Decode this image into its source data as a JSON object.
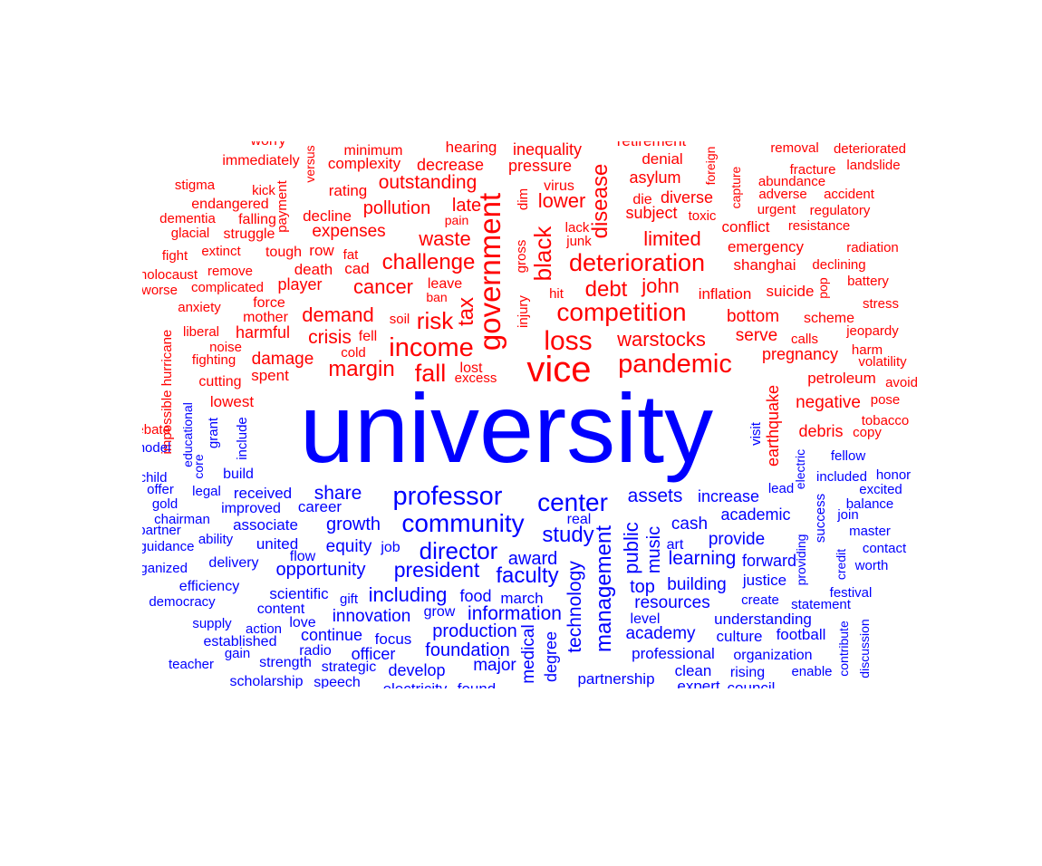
{
  "chart_data": {
    "type": "wordcloud",
    "colors": {
      "negative": "#ff0000",
      "positive": "#0000ff"
    },
    "series": [
      {
        "color_key": "negative",
        "words": [
          {
            "text": "worry"
          },
          {
            "text": "minimum"
          },
          {
            "text": "hearing"
          },
          {
            "text": "inequality"
          },
          {
            "text": "retirement"
          },
          {
            "text": "removal"
          },
          {
            "text": "deteriorated"
          },
          {
            "text": "immediately"
          },
          {
            "text": "versus"
          },
          {
            "text": "complexity"
          },
          {
            "text": "decrease"
          },
          {
            "text": "pressure"
          },
          {
            "text": "foreign"
          },
          {
            "text": "denial"
          },
          {
            "text": "fracture"
          },
          {
            "text": "landslide"
          },
          {
            "text": "stigma"
          },
          {
            "text": "kick"
          },
          {
            "text": "rating"
          },
          {
            "text": "outstanding"
          },
          {
            "text": "virus"
          },
          {
            "text": "asylum"
          },
          {
            "text": "capture"
          },
          {
            "text": "abundance"
          },
          {
            "text": "endangered"
          },
          {
            "text": "payment"
          },
          {
            "text": "late"
          },
          {
            "text": "dim"
          },
          {
            "text": "lower"
          },
          {
            "text": "disease"
          },
          {
            "text": "die"
          },
          {
            "text": "diverse"
          },
          {
            "text": "adverse"
          },
          {
            "text": "accident"
          },
          {
            "text": "dementia"
          },
          {
            "text": "falling"
          },
          {
            "text": "decline"
          },
          {
            "text": "pollution"
          },
          {
            "text": "subject"
          },
          {
            "text": "toxic"
          },
          {
            "text": "urgent"
          },
          {
            "text": "regulatory"
          },
          {
            "text": "glacial"
          },
          {
            "text": "struggle"
          },
          {
            "text": "expenses"
          },
          {
            "text": "pain"
          },
          {
            "text": "government"
          },
          {
            "text": "lack"
          },
          {
            "text": "conflict"
          },
          {
            "text": "resistance"
          },
          {
            "text": "fight"
          },
          {
            "text": "extinct"
          },
          {
            "text": "tough"
          },
          {
            "text": "row"
          },
          {
            "text": "waste"
          },
          {
            "text": "junk"
          },
          {
            "text": "limited"
          },
          {
            "text": "emergency"
          },
          {
            "text": "radiation"
          },
          {
            "text": "holocaust"
          },
          {
            "text": "remove"
          },
          {
            "text": "fat"
          },
          {
            "text": "challenge"
          },
          {
            "text": "gross"
          },
          {
            "text": "black"
          },
          {
            "text": "deterioration"
          },
          {
            "text": "shanghai"
          },
          {
            "text": "declining"
          },
          {
            "text": "worse"
          },
          {
            "text": "complicated"
          },
          {
            "text": "death"
          },
          {
            "text": "cad"
          },
          {
            "text": "battery"
          },
          {
            "text": "anxiety"
          },
          {
            "text": "player"
          },
          {
            "text": "cancer"
          },
          {
            "text": "leave"
          },
          {
            "text": "debt"
          },
          {
            "text": "john"
          },
          {
            "text": "inflation"
          },
          {
            "text": "suicide"
          },
          {
            "text": "pop"
          },
          {
            "text": "stress"
          },
          {
            "text": "hurricane"
          },
          {
            "text": "force"
          },
          {
            "text": "ban"
          },
          {
            "text": "injury"
          },
          {
            "text": "hit"
          },
          {
            "text": "tax"
          },
          {
            "text": "liberal"
          },
          {
            "text": "mother"
          },
          {
            "text": "demand"
          },
          {
            "text": "soil"
          },
          {
            "text": "risk"
          },
          {
            "text": "competition"
          },
          {
            "text": "bottom"
          },
          {
            "text": "scheme"
          },
          {
            "text": "jeopardy"
          },
          {
            "text": "noise"
          },
          {
            "text": "harmful"
          },
          {
            "text": "crisis"
          },
          {
            "text": "fell"
          },
          {
            "text": "loss"
          },
          {
            "text": "warstocks"
          },
          {
            "text": "serve"
          },
          {
            "text": "calls"
          },
          {
            "text": "harm"
          },
          {
            "text": "fighting"
          },
          {
            "text": "damage"
          },
          {
            "text": "cold"
          },
          {
            "text": "income"
          },
          {
            "text": "pregnancy"
          },
          {
            "text": "volatility"
          },
          {
            "text": "impossible"
          },
          {
            "text": "cutting"
          },
          {
            "text": "spent"
          },
          {
            "text": "margin"
          },
          {
            "text": "fall"
          },
          {
            "text": "lost"
          },
          {
            "text": "excess"
          },
          {
            "text": "vice"
          },
          {
            "text": "pandemic"
          },
          {
            "text": "petroleum"
          },
          {
            "text": "avoid"
          },
          {
            "text": "lowest"
          },
          {
            "text": "earthquake"
          },
          {
            "text": "negative"
          },
          {
            "text": "pose"
          },
          {
            "text": "debate"
          },
          {
            "text": "tobacco"
          },
          {
            "text": "debris"
          },
          {
            "text": "copy"
          }
        ]
      },
      {
        "color_key": "positive",
        "words": [
          {
            "text": "university"
          },
          {
            "text": "model"
          },
          {
            "text": "educational"
          },
          {
            "text": "core"
          },
          {
            "text": "grant"
          },
          {
            "text": "include"
          },
          {
            "text": "visit"
          },
          {
            "text": "fellow"
          },
          {
            "text": "child"
          },
          {
            "text": "build"
          },
          {
            "text": "electric"
          },
          {
            "text": "included"
          },
          {
            "text": "honor"
          },
          {
            "text": "offer"
          },
          {
            "text": "legal"
          },
          {
            "text": "received"
          },
          {
            "text": "share"
          },
          {
            "text": "professor"
          },
          {
            "text": "center"
          },
          {
            "text": "assets"
          },
          {
            "text": "increase"
          },
          {
            "text": "lead"
          },
          {
            "text": "excited"
          },
          {
            "text": "gold"
          },
          {
            "text": "improved"
          },
          {
            "text": "career"
          },
          {
            "text": "success"
          },
          {
            "text": "balance"
          },
          {
            "text": "chairman"
          },
          {
            "text": "real"
          },
          {
            "text": "academic"
          },
          {
            "text": "join"
          },
          {
            "text": "partner"
          },
          {
            "text": "associate"
          },
          {
            "text": "growth"
          },
          {
            "text": "community"
          },
          {
            "text": "cash"
          },
          {
            "text": "master"
          },
          {
            "text": "guidance"
          },
          {
            "text": "ability"
          },
          {
            "text": "united"
          },
          {
            "text": "study"
          },
          {
            "text": "public"
          },
          {
            "text": "provide"
          },
          {
            "text": "providing"
          },
          {
            "text": "contact"
          },
          {
            "text": "equity"
          },
          {
            "text": "job"
          },
          {
            "text": "director"
          },
          {
            "text": "music"
          },
          {
            "text": "art"
          },
          {
            "text": "credit"
          },
          {
            "text": "organized"
          },
          {
            "text": "delivery"
          },
          {
            "text": "flow"
          },
          {
            "text": "award"
          },
          {
            "text": "learning"
          },
          {
            "text": "forward"
          },
          {
            "text": "worth"
          },
          {
            "text": "opportunity"
          },
          {
            "text": "president"
          },
          {
            "text": "faculty"
          },
          {
            "text": "justice"
          },
          {
            "text": "efficiency"
          },
          {
            "text": "technology"
          },
          {
            "text": "management"
          },
          {
            "text": "top"
          },
          {
            "text": "building"
          },
          {
            "text": "festival"
          },
          {
            "text": "democracy"
          },
          {
            "text": "scientific"
          },
          {
            "text": "gift"
          },
          {
            "text": "including"
          },
          {
            "text": "food"
          },
          {
            "text": "march"
          },
          {
            "text": "create"
          },
          {
            "text": "statement"
          },
          {
            "text": "content"
          },
          {
            "text": "grow"
          },
          {
            "text": "resources"
          },
          {
            "text": "supply"
          },
          {
            "text": "action"
          },
          {
            "text": "love"
          },
          {
            "text": "innovation"
          },
          {
            "text": "information"
          },
          {
            "text": "level"
          },
          {
            "text": "understanding"
          },
          {
            "text": "continue"
          },
          {
            "text": "production"
          },
          {
            "text": "academy"
          },
          {
            "text": "culture"
          },
          {
            "text": "football"
          },
          {
            "text": "contribute"
          },
          {
            "text": "discussion"
          },
          {
            "text": "established"
          },
          {
            "text": "focus"
          },
          {
            "text": "medical"
          },
          {
            "text": "degree"
          },
          {
            "text": "gain"
          },
          {
            "text": "radio"
          },
          {
            "text": "officer"
          },
          {
            "text": "foundation"
          },
          {
            "text": "professional"
          },
          {
            "text": "organization"
          },
          {
            "text": "teacher"
          },
          {
            "text": "strength"
          },
          {
            "text": "strategic"
          },
          {
            "text": "major"
          },
          {
            "text": "clean"
          },
          {
            "text": "rising"
          },
          {
            "text": "enable"
          },
          {
            "text": "develop"
          },
          {
            "text": "scholarship"
          },
          {
            "text": "speech"
          },
          {
            "text": "partnership"
          },
          {
            "text": "electricity"
          },
          {
            "text": "found"
          },
          {
            "text": "expert"
          },
          {
            "text": "council"
          }
        ]
      }
    ]
  }
}
